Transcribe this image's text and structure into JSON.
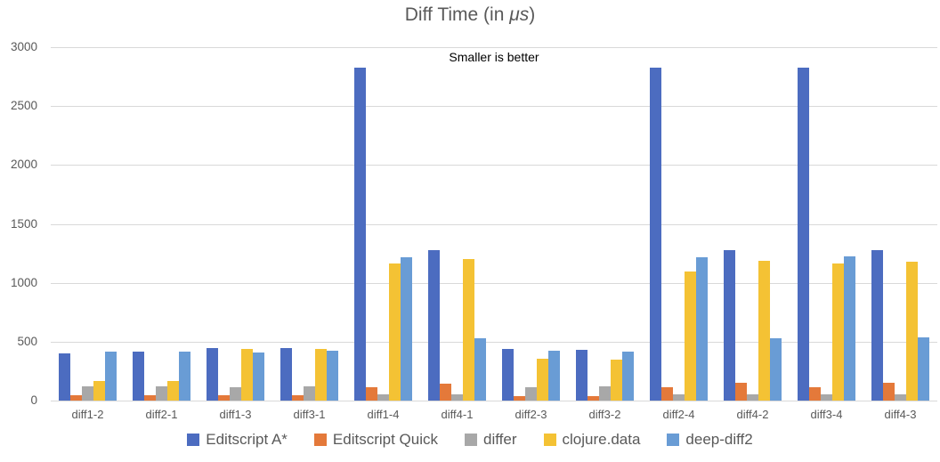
{
  "title": {
    "prefix": "Diff Time (in ",
    "mu": "μs",
    "suffix": ")"
  },
  "subtitle": "Smaller is better",
  "chart_data": {
    "type": "bar",
    "title": "Diff Time (in μs)",
    "subtitle": "Smaller is better",
    "xlabel": "",
    "ylabel": "",
    "ylim": [
      0,
      3000
    ],
    "yticks": [
      0,
      500,
      1000,
      1500,
      2000,
      2500,
      3000
    ],
    "grid": true,
    "legend_position": "bottom",
    "gridline_color": "#d9d9d9",
    "categories": [
      "diff1-2",
      "diff2-1",
      "diff1-3",
      "diff3-1",
      "diff1-4",
      "diff4-1",
      "diff2-3",
      "diff3-2",
      "diff2-4",
      "diff4-2",
      "diff3-4",
      "diff4-3"
    ],
    "series": [
      {
        "name": "Editscript A*",
        "color": "#4c6cc0",
        "values": [
          400,
          415,
          445,
          445,
          2830,
          1275,
          435,
          430,
          2830,
          1275,
          2830,
          1275
        ]
      },
      {
        "name": "Editscript Quick",
        "color": "#e4793a",
        "values": [
          45,
          45,
          45,
          45,
          110,
          145,
          40,
          40,
          110,
          150,
          110,
          150
        ]
      },
      {
        "name": "differ",
        "color": "#a8a8a8",
        "values": [
          120,
          120,
          115,
          120,
          50,
          50,
          115,
          120,
          50,
          50,
          50,
          50
        ]
      },
      {
        "name": "clojure.data",
        "color": "#f4c234",
        "values": [
          170,
          170,
          440,
          440,
          1165,
          1200,
          355,
          350,
          1095,
          1185,
          1165,
          1180
        ]
      },
      {
        "name": "deep-diff2",
        "color": "#699cd5",
        "values": [
          415,
          415,
          410,
          420,
          1220,
          530,
          420,
          415,
          1220,
          530,
          1225,
          535
        ]
      }
    ]
  }
}
